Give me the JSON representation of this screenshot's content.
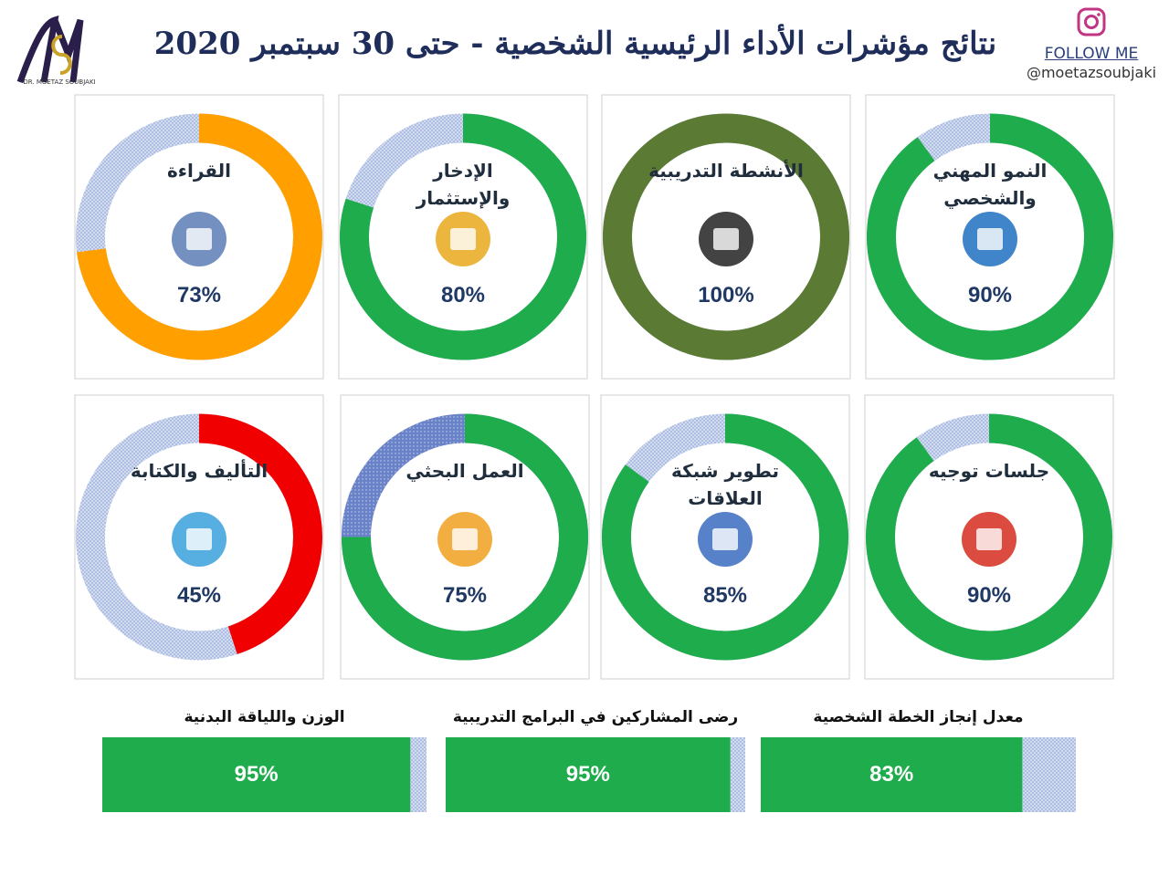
{
  "header": {
    "title": "نتائج مؤشرات الأداء الرئيسية الشخصية - حتى 30 سبتمبر 2020",
    "follow": "FOLLOW ME",
    "handle": "@moetazsoubjaki",
    "logo": "DR. MOETAZ SOUBJAKI"
  },
  "chart_data": [
    {
      "type": "donut",
      "title": "النمو المهني والشخصي",
      "values": [
        90
      ],
      "value_labels": [
        "90%"
      ],
      "color": "#1fac4c",
      "ylim": [
        0,
        100
      ]
    },
    {
      "type": "donut",
      "title": "الأنشطة التدريبية",
      "values": [
        100
      ],
      "value_labels": [
        "100%"
      ],
      "color": "#5b7b35",
      "ylim": [
        0,
        100
      ]
    },
    {
      "type": "donut",
      "title": "الإدخار والإستثمار",
      "values": [
        80
      ],
      "value_labels": [
        "80%"
      ],
      "color": "#1fac4c",
      "ylim": [
        0,
        100
      ]
    },
    {
      "type": "donut",
      "title": "القراءة",
      "values": [
        73
      ],
      "value_labels": [
        "73%"
      ],
      "color": "#ffa000",
      "ylim": [
        0,
        100
      ]
    },
    {
      "type": "donut",
      "title": "جلسات توجيه",
      "values": [
        90
      ],
      "value_labels": [
        "90%"
      ],
      "color": "#1fac4c",
      "ylim": [
        0,
        100
      ]
    },
    {
      "type": "donut",
      "title": "تطوير شبكة العلاقات",
      "values": [
        85
      ],
      "value_labels": [
        "85%"
      ],
      "color": "#1fac4c",
      "ylim": [
        0,
        100
      ]
    },
    {
      "type": "donut",
      "title": "العمل البحثي",
      "values": [
        75
      ],
      "value_labels": [
        "75%"
      ],
      "color": "#1fac4c",
      "ylim": [
        0,
        100
      ]
    },
    {
      "type": "donut",
      "title": "التأليف والكتابة",
      "values": [
        45
      ],
      "value_labels": [
        "45%"
      ],
      "color": "#f00000",
      "ylim": [
        0,
        100
      ]
    },
    {
      "type": "bar",
      "title": "معدل إنجاز الخطة الشخصية",
      "values": [
        83
      ],
      "value_labels": [
        "83%"
      ],
      "color": "#1fac4c",
      "ylim": [
        0,
        100
      ]
    },
    {
      "type": "bar",
      "title": "رضى المشاركين في البرامج التدريبية",
      "values": [
        95
      ],
      "value_labels": [
        "95%"
      ],
      "color": "#1fac4c",
      "ylim": [
        0,
        100
      ]
    },
    {
      "type": "bar",
      "title": "الوزن واللياقة البدنية",
      "values": [
        95
      ],
      "value_labels": [
        "95%"
      ],
      "color": "#1fac4c",
      "ylim": [
        0,
        100
      ]
    }
  ]
}
